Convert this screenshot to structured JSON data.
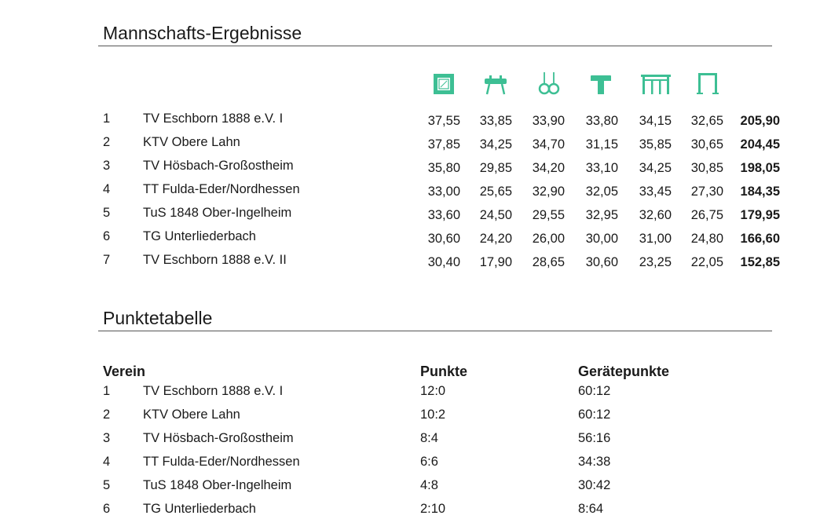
{
  "team_results": {
    "title": "Mannschafts-Ergebnisse",
    "apparatus_icons": [
      "floor-icon",
      "pommel-horse-icon",
      "rings-icon",
      "vault-icon",
      "parallel-bars-icon",
      "high-bar-icon"
    ],
    "icon_color": "#3dbf94",
    "rows": [
      {
        "rank": "1",
        "team": "TV Eschborn 1888 e.V. I",
        "scores": [
          "37,55",
          "33,85",
          "33,90",
          "33,80",
          "34,15",
          "32,65"
        ],
        "total": "205,90"
      },
      {
        "rank": "2",
        "team": "KTV Obere Lahn",
        "scores": [
          "37,85",
          "34,25",
          "34,70",
          "31,15",
          "35,85",
          "30,65"
        ],
        "total": "204,45"
      },
      {
        "rank": "3",
        "team": "TV Hösbach-Großostheim",
        "scores": [
          "35,80",
          "29,85",
          "34,20",
          "33,10",
          "34,25",
          "30,85"
        ],
        "total": "198,05"
      },
      {
        "rank": "4",
        "team": "TT Fulda-Eder/Nordhessen",
        "scores": [
          "33,00",
          "25,65",
          "32,90",
          "32,05",
          "33,45",
          "27,30"
        ],
        "total": "184,35"
      },
      {
        "rank": "5",
        "team": "TuS 1848 Ober-Ingelheim",
        "scores": [
          "33,60",
          "24,50",
          "29,55",
          "32,95",
          "32,60",
          "26,75"
        ],
        "total": "179,95"
      },
      {
        "rank": "6",
        "team": "TG Unterliederbach",
        "scores": [
          "30,60",
          "24,20",
          "26,00",
          "30,00",
          "31,00",
          "24,80"
        ],
        "total": "166,60"
      },
      {
        "rank": "7",
        "team": "TV Eschborn 1888 e.V. II",
        "scores": [
          "30,40",
          "17,90",
          "28,65",
          "30,60",
          "23,25",
          "22,05"
        ],
        "total": "152,85"
      }
    ]
  },
  "points_table": {
    "title": "Punktetabelle",
    "headers": {
      "club": "Verein",
      "points": "Punkte",
      "apparatus_points": "Gerätepunkte"
    },
    "rows": [
      {
        "rank": "1",
        "team": "TV Eschborn 1888 e.V. I",
        "points": "12:0",
        "apparatus_points": "60:12"
      },
      {
        "rank": "2",
        "team": "KTV Obere Lahn",
        "points": "10:2",
        "apparatus_points": "60:12"
      },
      {
        "rank": "3",
        "team": "TV Hösbach-Großostheim",
        "points": "8:4",
        "apparatus_points": "56:16"
      },
      {
        "rank": "4",
        "team": "TT Fulda-Eder/Nordhessen",
        "points": "6:6",
        "apparatus_points": "34:38"
      },
      {
        "rank": "5",
        "team": "TuS 1848 Ober-Ingelheim",
        "points": "4:8",
        "apparatus_points": "30:42"
      },
      {
        "rank": "6",
        "team": "TG Unterliederbach",
        "points": "2:10",
        "apparatus_points": "8:64"
      }
    ]
  }
}
